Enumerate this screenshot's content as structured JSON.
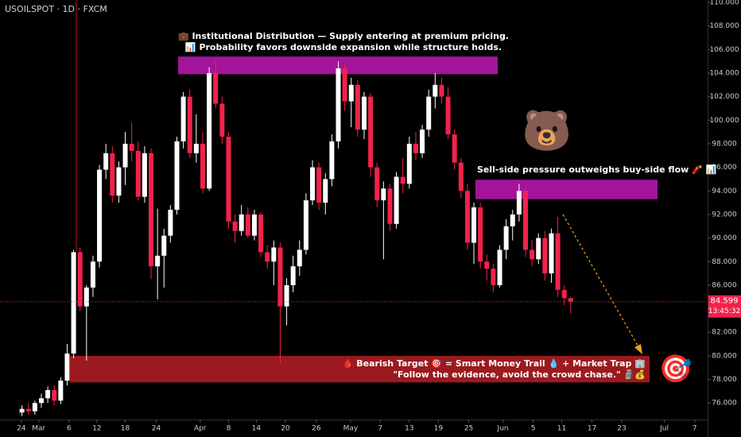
{
  "header": {
    "symbol": "USOILSPOT · 1D · FXCM"
  },
  "chart_data": {
    "type": "candlestick",
    "open": [
      75.2,
      75.5,
      75.3,
      76.0,
      76.4,
      77.1,
      76.2,
      77.9,
      80.2,
      88.8,
      84.2,
      85.8,
      88.0,
      95.8,
      97.2,
      93.6,
      96.0,
      98.0,
      97.4,
      93.5,
      97.2,
      87.6,
      88.5,
      90.2,
      92.4,
      98.2,
      102.0,
      97.2,
      98.0,
      94.2,
      104.0,
      101.4,
      98.6,
      91.4,
      90.6,
      92.0,
      90.2,
      92.0,
      88.8,
      88.0,
      89.2,
      84.2,
      86.0,
      87.6,
      89.0,
      93.2,
      96.0,
      93.0,
      95.0,
      98.2,
      104.4,
      101.6,
      103.0,
      99.2,
      102.0,
      96.0,
      93.2,
      94.2,
      91.2,
      95.2,
      94.6,
      98.0,
      97.2,
      99.2,
      102.0,
      103.0,
      102.0,
      98.8,
      96.4,
      94.0,
      89.6,
      92.6,
      88.0,
      87.4,
      86.0,
      89.0,
      91.0,
      92.0,
      94.0,
      89.0,
      88.2,
      90.0,
      87.0,
      90.4,
      85.6,
      84.9
    ],
    "high": [
      75.8,
      76.0,
      76.2,
      76.8,
      77.4,
      77.5,
      78.2,
      81.0,
      89.0,
      89.2,
      86.0,
      88.5,
      96.2,
      98.0,
      97.8,
      96.5,
      99.0,
      99.8,
      98.2,
      97.8,
      97.6,
      92.5,
      90.8,
      92.8,
      98.6,
      102.4,
      102.6,
      100.5,
      99.0,
      104.5,
      105.0,
      102.0,
      99.0,
      92.0,
      92.8,
      92.6,
      92.4,
      92.2,
      89.4,
      89.8,
      89.6,
      86.6,
      88.5,
      89.8,
      93.8,
      96.6,
      96.4,
      95.5,
      98.8,
      105.0,
      104.8,
      103.6,
      103.4,
      102.4,
      102.3,
      96.4,
      94.8,
      94.6,
      95.6,
      96.8,
      98.6,
      99.0,
      99.6,
      102.6,
      104.0,
      103.6,
      102.8,
      99.2,
      96.8,
      94.6,
      93.0,
      93.0,
      88.6,
      87.8,
      89.4,
      91.6,
      92.4,
      94.6,
      94.2,
      89.8,
      90.4,
      90.6,
      90.8,
      91.8,
      86.0,
      85.0
    ],
    "low": [
      74.9,
      75.0,
      75.0,
      75.6,
      76.0,
      75.8,
      75.9,
      77.5,
      79.8,
      83.8,
      79.6,
      85.0,
      87.5,
      95.0,
      93.0,
      93.0,
      94.5,
      96.5,
      93.2,
      93.0,
      86.5,
      84.8,
      85.8,
      89.6,
      92.0,
      97.6,
      96.8,
      96.4,
      93.8,
      94.0,
      101.0,
      98.0,
      90.8,
      89.6,
      90.2,
      90.0,
      89.8,
      88.4,
      87.4,
      86.0,
      79.3,
      82.6,
      85.4,
      86.8,
      88.6,
      92.8,
      92.4,
      92.0,
      94.4,
      97.6,
      100.8,
      99.4,
      98.6,
      98.4,
      95.2,
      92.6,
      88.2,
      90.6,
      90.8,
      93.8,
      94.2,
      96.6,
      96.8,
      98.6,
      101.0,
      101.4,
      98.4,
      95.8,
      93.4,
      89.0,
      87.8,
      87.4,
      86.4,
      85.4,
      85.8,
      88.2,
      89.8,
      91.4,
      88.4,
      87.6,
      87.8,
      86.4,
      86.2,
      85.0,
      84.3,
      83.6
    ],
    "close": [
      75.5,
      75.3,
      76.0,
      76.4,
      77.1,
      76.2,
      77.9,
      80.2,
      88.8,
      84.2,
      85.8,
      88.0,
      95.8,
      97.2,
      93.6,
      96.0,
      98.0,
      97.4,
      93.5,
      97.2,
      87.6,
      88.5,
      90.2,
      92.4,
      98.2,
      102.0,
      97.2,
      98.0,
      94.2,
      104.0,
      101.4,
      98.6,
      91.4,
      90.6,
      92.0,
      90.2,
      92.0,
      88.8,
      88.0,
      89.2,
      84.2,
      86.0,
      87.6,
      89.0,
      93.2,
      96.0,
      93.0,
      95.0,
      98.2,
      104.4,
      101.6,
      103.0,
      99.2,
      102.0,
      96.0,
      93.2,
      94.2,
      91.2,
      95.2,
      94.6,
      98.0,
      97.2,
      99.2,
      102.0,
      103.0,
      102.0,
      98.8,
      96.4,
      94.0,
      89.6,
      92.6,
      88.0,
      87.4,
      86.0,
      89.0,
      91.0,
      92.0,
      94.0,
      89.0,
      88.2,
      90.0,
      87.0,
      90.4,
      85.6,
      84.9,
      84.599
    ],
    "up_color": "#ffffff",
    "down_color": "#f2224b",
    "xlim": [
      -3.4,
      106.2
    ],
    "xticks": [
      {
        "value": -0.1,
        "label": "24"
      },
      {
        "value": 2.6,
        "label": "Mar"
      },
      {
        "value": 7.3,
        "label": "6"
      },
      {
        "value": 11.6,
        "label": "12"
      },
      {
        "value": 16.0,
        "label": "18"
      },
      {
        "value": 20.8,
        "label": "24"
      },
      {
        "value": 27.6,
        "label": "Apr"
      },
      {
        "value": 32.0,
        "label": "8"
      },
      {
        "value": 36.3,
        "label": "14"
      },
      {
        "value": 40.8,
        "label": "20"
      },
      {
        "value": 45.6,
        "label": "26"
      },
      {
        "value": 50.9,
        "label": "May"
      },
      {
        "value": 55.5,
        "label": "7"
      },
      {
        "value": 60.0,
        "label": "13"
      },
      {
        "value": 64.5,
        "label": "19"
      },
      {
        "value": 69.2,
        "label": "25"
      },
      {
        "value": 74.5,
        "label": "Jun"
      },
      {
        "value": 79.2,
        "label": "5"
      },
      {
        "value": 83.6,
        "label": "11"
      },
      {
        "value": 88.3,
        "label": "17"
      },
      {
        "value": 92.9,
        "label": "23"
      },
      {
        "value": 99.5,
        "label": "Jul"
      },
      {
        "value": 104.2,
        "label": "7"
      }
    ],
    "ylim": [
      74.6,
      110.2
    ],
    "yticks": [
      {
        "value": 76,
        "label": "76.000"
      },
      {
        "value": 78,
        "label": "78.000"
      },
      {
        "value": 80,
        "label": "80.000"
      },
      {
        "value": 82,
        "label": "82.000"
      },
      {
        "value": 84,
        "label": "84.000"
      },
      {
        "value": 86,
        "label": "86.000"
      },
      {
        "value": 88,
        "label": "88.000"
      },
      {
        "value": 90,
        "label": "90.000"
      },
      {
        "value": 92,
        "label": "92.000"
      },
      {
        "value": 94,
        "label": "94.000"
      },
      {
        "value": 96,
        "label": "96.000"
      },
      {
        "value": 98,
        "label": "98.000"
      },
      {
        "value": 100,
        "label": "100.000"
      },
      {
        "value": 102,
        "label": "102.000"
      },
      {
        "value": 104,
        "label": "104.000"
      },
      {
        "value": 106,
        "label": "106.000"
      },
      {
        "value": 108,
        "label": "108.000"
      },
      {
        "value": 110,
        "label": "110.000"
      }
    ],
    "last_price": 84.599,
    "countdown": "13:45:32",
    "zones": [
      {
        "top": 105.4,
        "bottom": 103.9,
        "color": "#a3149b",
        "lines": [
          "💼 Institutional Distribution — Supply entering at premium pricing.",
          "📊 Probability favors downside expansion while structure holds."
        ]
      },
      {
        "top": 94.95,
        "bottom": 93.3,
        "color": "#a3149b",
        "lines": [
          "Sell-side pressure outweighs buy-side flow 🧨 📊"
        ]
      },
      {
        "top": 80.0,
        "bottom": 77.75,
        "color": "#9a1a1f",
        "lines": [
          "🩸 Bearish Target 🎯 = Smart Money Trail 💧 + Market Trap 🏢",
          "\"Follow the evidence, avoid the crowd chase.\" 🗿💰"
        ]
      }
    ]
  }
}
